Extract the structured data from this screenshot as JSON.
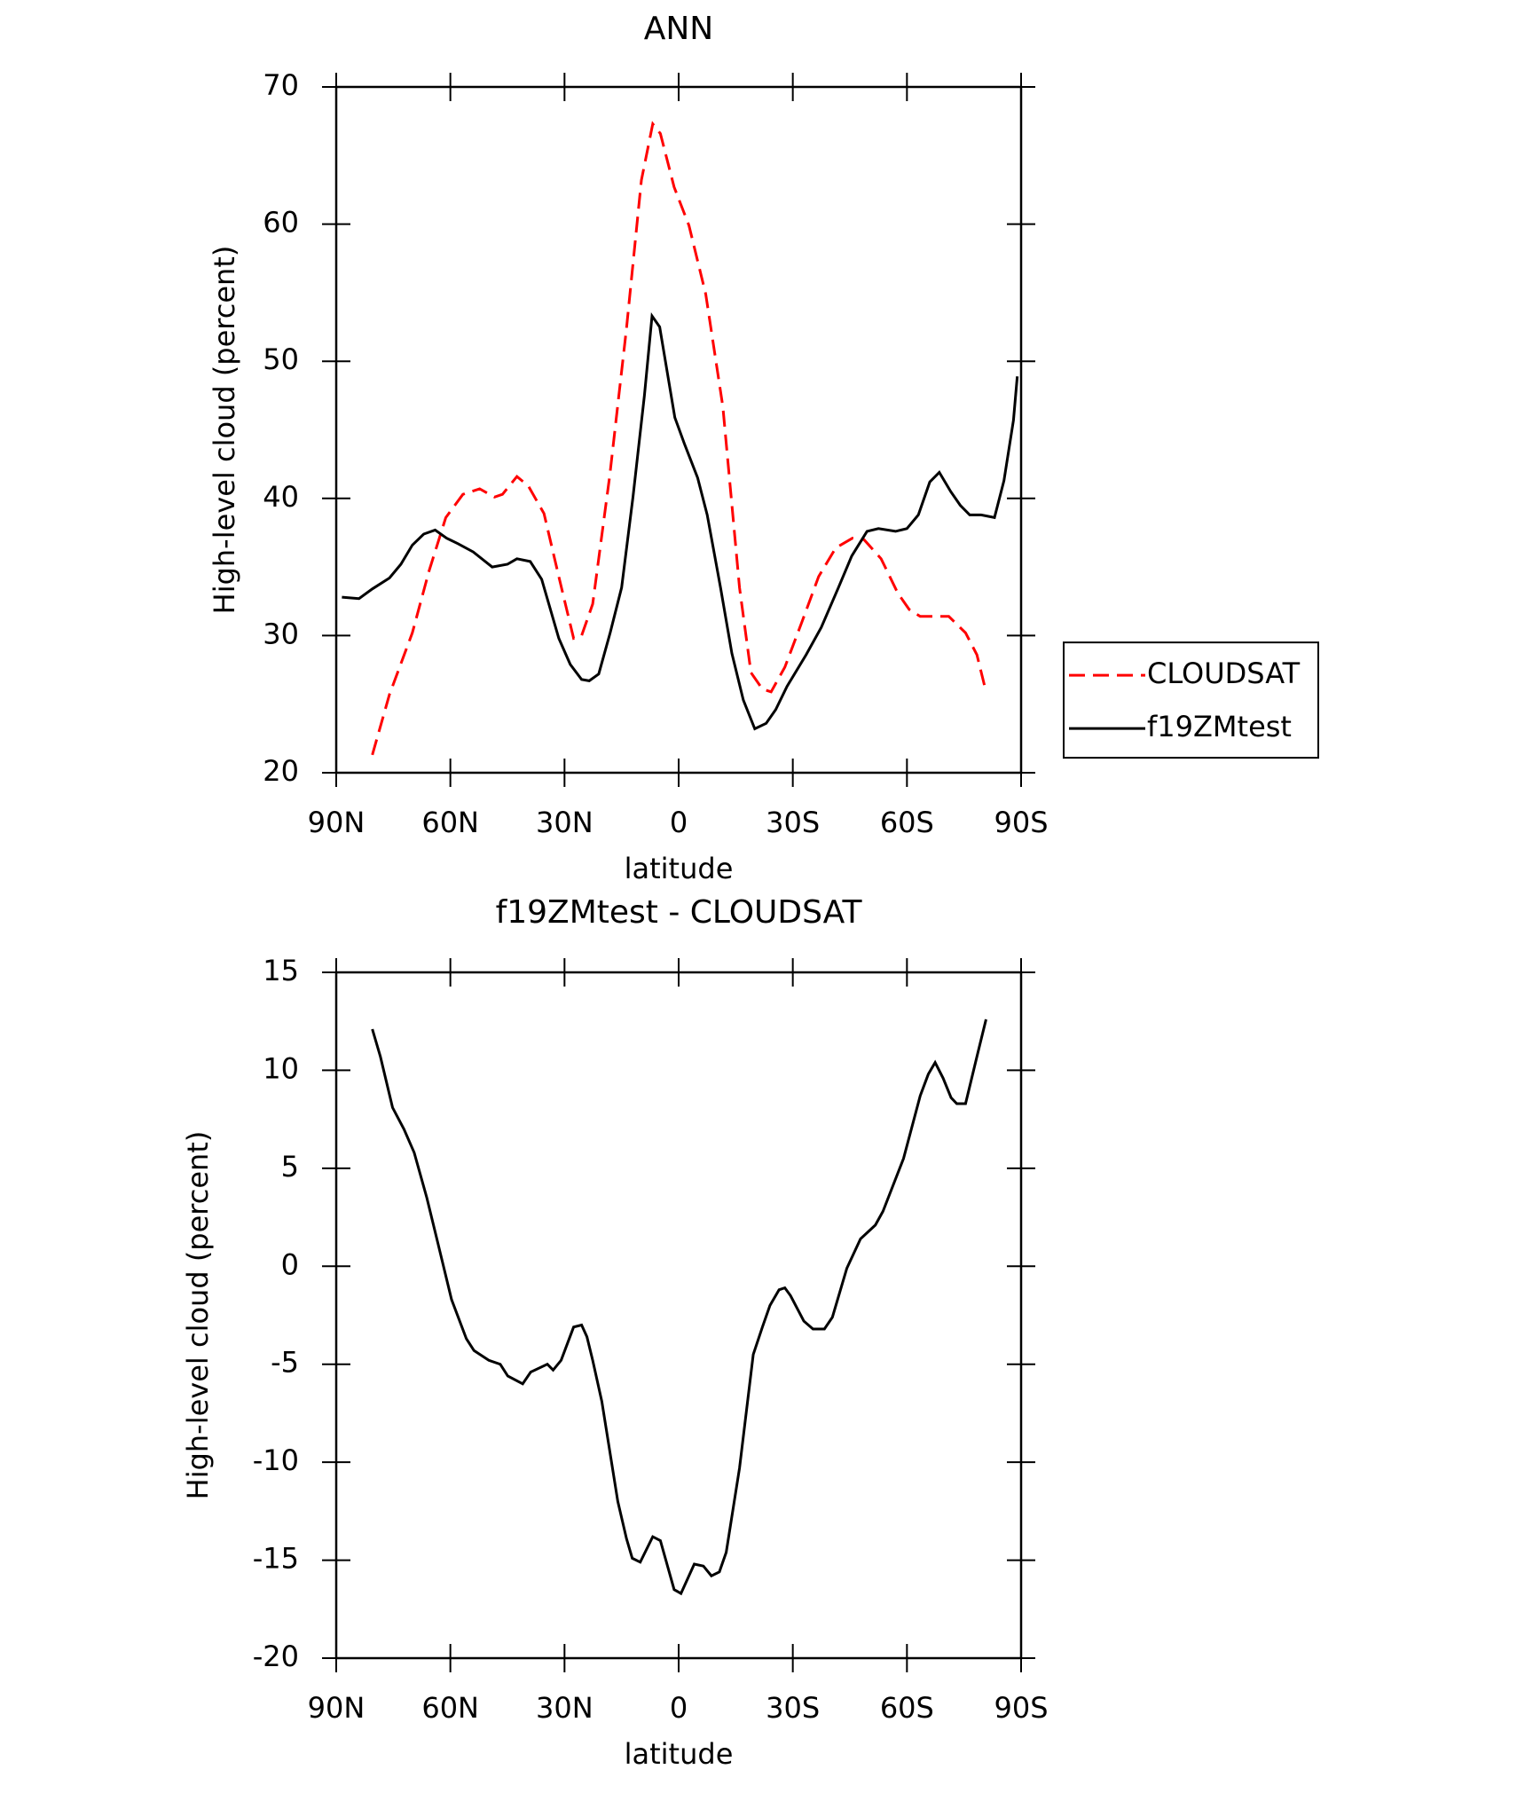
{
  "chart_data": [
    {
      "type": "line",
      "title": "ANN",
      "xlabel": "latitude",
      "ylabel": "High-level cloud (percent)",
      "xlim": [
        90,
        -90
      ],
      "xticks": [
        {
          "value": 90,
          "label": "90N"
        },
        {
          "value": 60,
          "label": "60N"
        },
        {
          "value": 30,
          "label": "30N"
        },
        0,
        {
          "value": -30,
          "label": "30S"
        },
        {
          "value": -60,
          "label": "60S"
        },
        {
          "value": -90,
          "label": "90S"
        }
      ],
      "ylim": [
        20,
        70
      ],
      "yticks": [
        20,
        30,
        40,
        50,
        60,
        70
      ],
      "legend": "right",
      "series": [
        {
          "name": "CLOUDSAT",
          "color": "#ff0000",
          "dashed": true,
          "x": [
            80.5,
            76,
            70,
            65.6,
            61.2,
            56.7,
            52.3,
            48.4,
            46.3,
            42.5,
            39.5,
            35.4,
            31.5,
            27.6,
            25.5,
            22.6,
            18.1,
            13.7,
            9.8,
            6.8,
            4.8,
            1.2,
            -2.7,
            -7.1,
            -11.6,
            -16,
            -19,
            -22,
            -24.3,
            -27.9,
            -32.4,
            -36.8,
            -41.3,
            -45.7,
            -48.7,
            -53.2,
            -57.6,
            -60.6,
            -63.5,
            -71,
            -75.4,
            -78.4,
            -80.8
          ],
          "values": [
            21.3,
            25.7,
            30.2,
            34.7,
            38.6,
            40.3,
            40.7,
            40.1,
            40.3,
            41.6,
            40.9,
            38.9,
            34.3,
            29.8,
            30.0,
            32.3,
            41.7,
            52.4,
            63.2,
            67.3,
            66.6,
            62.7,
            59.9,
            54.9,
            46.7,
            33.5,
            27.3,
            26.1,
            25.9,
            27.7,
            31.0,
            34.3,
            36.4,
            37.1,
            37.0,
            35.6,
            33.1,
            31.9,
            31.4,
            31.4,
            30.2,
            28.6,
            25.9
          ]
        },
        {
          "name": "f19ZMtest",
          "color": "#000000",
          "dashed": false,
          "x": [
            88.5,
            84,
            80.5,
            76,
            73,
            70,
            67,
            64,
            61,
            58,
            54,
            49,
            45,
            42.5,
            39,
            36,
            31.5,
            28.5,
            25.5,
            23.5,
            21,
            18,
            15,
            12,
            9,
            7,
            5,
            1,
            -1.5,
            -5,
            -7.5,
            -11,
            -14,
            -17,
            -20,
            -23,
            -25.5,
            -28.5,
            -33.5,
            -37.5,
            -42,
            -45.5,
            -49.5,
            -52.5,
            -57,
            -60,
            -63,
            -66,
            -68.5,
            -71.5,
            -74,
            -76.5,
            -79.5,
            -83,
            -85.5,
            -88,
            -89
          ],
          "values": [
            32.8,
            32.7,
            33.4,
            34.2,
            35.2,
            36.6,
            37.4,
            37.7,
            37.1,
            36.7,
            36.1,
            35.0,
            35.2,
            35.6,
            35.4,
            34.1,
            29.8,
            27.9,
            26.8,
            26.7,
            27.2,
            30.2,
            33.5,
            40.1,
            47.5,
            53.3,
            52.5,
            45.9,
            44.0,
            41.5,
            38.8,
            33.5,
            28.7,
            25.3,
            23.2,
            23.6,
            24.6,
            26.3,
            28.6,
            30.6,
            33.5,
            35.8,
            37.6,
            37.8,
            37.6,
            37.8,
            38.8,
            41.2,
            41.9,
            40.5,
            39.5,
            38.8,
            38.8,
            38.6,
            41.3,
            45.7,
            48.9
          ]
        }
      ]
    },
    {
      "type": "line",
      "title": "f19ZMtest - CLOUDSAT",
      "xlabel": "latitude",
      "ylabel": "High-level cloud (percent)",
      "xlim": [
        90,
        -90
      ],
      "xticks": [
        {
          "value": 90,
          "label": "90N"
        },
        {
          "value": 60,
          "label": "60N"
        },
        {
          "value": 30,
          "label": "30N"
        },
        0,
        {
          "value": -30,
          "label": "30S"
        },
        {
          "value": -60,
          "label": "60S"
        },
        {
          "value": -90,
          "label": "90S"
        }
      ],
      "ylim": [
        -20,
        15
      ],
      "yticks": [
        -20,
        -15,
        -10,
        -5,
        0,
        5,
        10,
        15
      ],
      "series": [
        {
          "color": "#000000",
          "dashed": false,
          "x": [
            80.5,
            78.4,
            75.2,
            72.2,
            69.5,
            66.2,
            63.3,
            59.7,
            55.8,
            53.8,
            49.9,
            46.9,
            44.9,
            41,
            38.9,
            34.5,
            33,
            30.9,
            27.6,
            25.5,
            24.1,
            22.6,
            20.2,
            16,
            13.7,
            12.2,
            10.1,
            6.8,
            4.8,
            1.2,
            -0.6,
            -4.1,
            -6.5,
            -8.6,
            -10.7,
            -12.5,
            -16,
            -19.6,
            -22,
            -24,
            -26.4,
            -27.9,
            -29.4,
            -32.9,
            -35.3,
            -38.3,
            -40.4,
            -44.2,
            -47.8,
            -51.7,
            -53.7,
            -59.1,
            -63.5,
            -65.6,
            -67.4,
            -69.5,
            -71.6,
            -73.1,
            -75.4,
            -78.4,
            -80.8
          ],
          "values": [
            12.1,
            10.7,
            8.1,
            7.0,
            5.8,
            3.5,
            1.2,
            -1.7,
            -3.7,
            -4.3,
            -4.8,
            -5.0,
            -5.6,
            -6.0,
            -5.4,
            -5.0,
            -5.3,
            -4.8,
            -3.1,
            -3.0,
            -3.6,
            -4.8,
            -6.9,
            -12.0,
            -13.9,
            -14.9,
            -15.1,
            -13.8,
            -14.0,
            -16.5,
            -16.7,
            -15.2,
            -15.3,
            -15.8,
            -15.6,
            -14.6,
            -10.3,
            -4.5,
            -3.1,
            -2.0,
            -1.2,
            -1.1,
            -1.5,
            -2.8,
            -3.2,
            -3.2,
            -2.6,
            -0.1,
            1.4,
            2.1,
            2.8,
            5.5,
            8.7,
            9.8,
            10.4,
            9.6,
            8.6,
            8.3,
            8.3,
            10.7,
            12.6
          ]
        }
      ]
    }
  ]
}
